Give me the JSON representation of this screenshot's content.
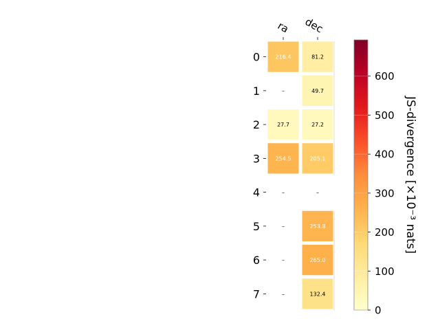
{
  "chart_data": {
    "type": "heatmap",
    "columns": [
      "ra",
      "dec"
    ],
    "rows": [
      "0",
      "1",
      "2",
      "3",
      "4",
      "5",
      "6",
      "7"
    ],
    "values": [
      [
        216.4,
        81.2
      ],
      [
        null,
        49.7
      ],
      [
        27.7,
        27.2
      ],
      [
        254.5,
        205.1
      ],
      [
        null,
        null
      ],
      [
        null,
        253.8
      ],
      [
        null,
        265.0
      ],
      [
        null,
        132.4
      ]
    ],
    "cell_labels": [
      [
        "216.4",
        "81.2"
      ],
      [
        "–",
        "49.7"
      ],
      [
        "27.7",
        "27.2"
      ],
      [
        "254.5",
        "205.1"
      ],
      [
        "–",
        "–"
      ],
      [
        "–",
        "253.8"
      ],
      [
        "–",
        "265.0"
      ],
      [
        "–",
        "132.4"
      ]
    ],
    "colorbar": {
      "label": "JS-divergence [×10⁻³ nats]",
      "ticks": [
        "0",
        "100",
        "200",
        "300",
        "400",
        "500",
        "600"
      ],
      "vmin": 0,
      "vmax": 693,
      "colormap": "YlOrRd"
    },
    "colors": {
      "missing_text": "#000000",
      "light_text": "#ffffff",
      "dark_text": "#000000",
      "separator": "#ffffff",
      "axis": "#000000"
    }
  }
}
